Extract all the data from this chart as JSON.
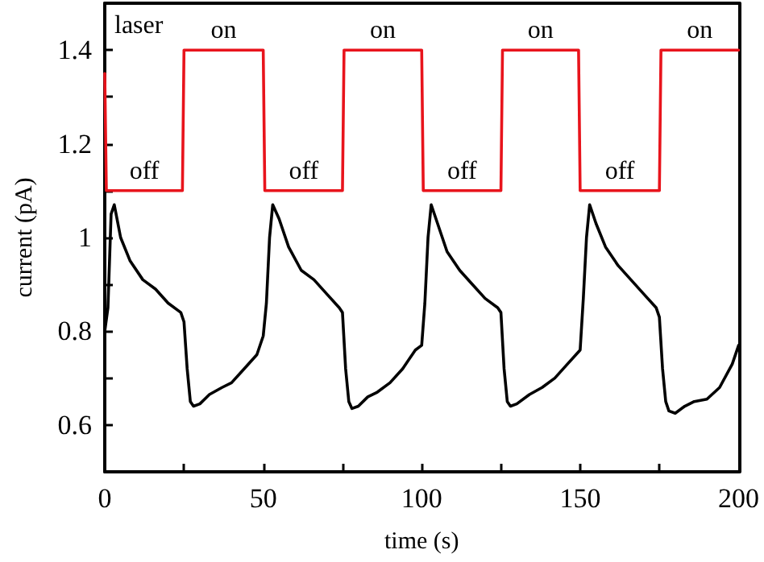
{
  "chart_data": {
    "type": "line",
    "xlabel": "time (s)",
    "ylabel": "current (pA)",
    "xlim": [
      0,
      200
    ],
    "ylim": [
      0.5,
      1.5
    ],
    "xticks": [
      0,
      {
        "value": 25,
        "label": null
      },
      50,
      {
        "value": 75,
        "label": null
      },
      100,
      {
        "value": 125,
        "label": null
      },
      150,
      {
        "value": 175,
        "label": null
      },
      200
    ],
    "yticks": [
      {
        "value": 0.5,
        "label": null
      },
      0.6,
      {
        "value": 0.7,
        "label": null
      },
      0.8,
      {
        "value": 0.9,
        "label": null
      },
      1.0,
      {
        "value": 1.1,
        "label": null
      },
      1.2,
      {
        "value": 1.3,
        "label": null
      },
      1.4
    ],
    "grid": false,
    "marker": "none",
    "line_style": "solid",
    "series": [
      {
        "color": "#e8141c",
        "x": [
          0,
          0.5,
          24.5,
          25,
          50,
          50.5,
          75,
          75.5,
          100,
          100.5,
          125,
          125.5,
          149.5,
          150,
          175,
          175.5,
          200
        ],
        "values": [
          1.35,
          1.1,
          1.1,
          1.4,
          1.4,
          1.1,
          1.1,
          1.4,
          1.4,
          1.1,
          1.1,
          1.4,
          1.4,
          1.1,
          1.1,
          1.4,
          1.4
        ]
      },
      {
        "color": "#000000",
        "x": [
          0,
          1,
          2,
          3,
          5,
          8,
          12,
          16,
          20,
          24,
          25,
          26,
          27,
          28,
          30,
          33,
          37,
          40,
          44,
          48,
          50,
          51,
          52,
          53,
          55,
          58,
          62,
          66,
          70,
          74,
          75,
          76,
          77,
          78,
          80,
          83,
          86,
          90,
          94,
          98,
          100,
          101,
          102,
          103,
          105,
          108,
          112,
          116,
          120,
          124,
          125,
          126,
          127,
          128,
          130,
          134,
          138,
          142,
          146,
          150,
          151,
          152,
          153,
          155,
          158,
          162,
          166,
          170,
          174,
          175,
          176,
          177,
          178,
          180,
          183,
          186,
          190,
          194,
          198,
          200
        ],
        "values": [
          0.8,
          0.85,
          1.05,
          1.07,
          1.0,
          0.95,
          0.91,
          0.89,
          0.86,
          0.84,
          0.82,
          0.72,
          0.65,
          0.64,
          0.645,
          0.665,
          0.68,
          0.69,
          0.72,
          0.75,
          0.79,
          0.86,
          1.0,
          1.07,
          1.04,
          0.98,
          0.93,
          0.91,
          0.88,
          0.85,
          0.84,
          0.72,
          0.65,
          0.635,
          0.64,
          0.66,
          0.67,
          0.69,
          0.72,
          0.76,
          0.77,
          0.86,
          1.0,
          1.07,
          1.03,
          0.97,
          0.93,
          0.9,
          0.87,
          0.85,
          0.84,
          0.72,
          0.65,
          0.64,
          0.645,
          0.665,
          0.68,
          0.7,
          0.73,
          0.76,
          0.87,
          1.0,
          1.07,
          1.03,
          0.98,
          0.94,
          0.91,
          0.88,
          0.85,
          0.83,
          0.72,
          0.65,
          0.63,
          0.625,
          0.64,
          0.65,
          0.655,
          0.68,
          0.73,
          0.77
        ]
      }
    ],
    "annotations": [
      "laser",
      "on",
      "on",
      "on",
      "on",
      "off",
      "off",
      "off",
      "off"
    ]
  }
}
